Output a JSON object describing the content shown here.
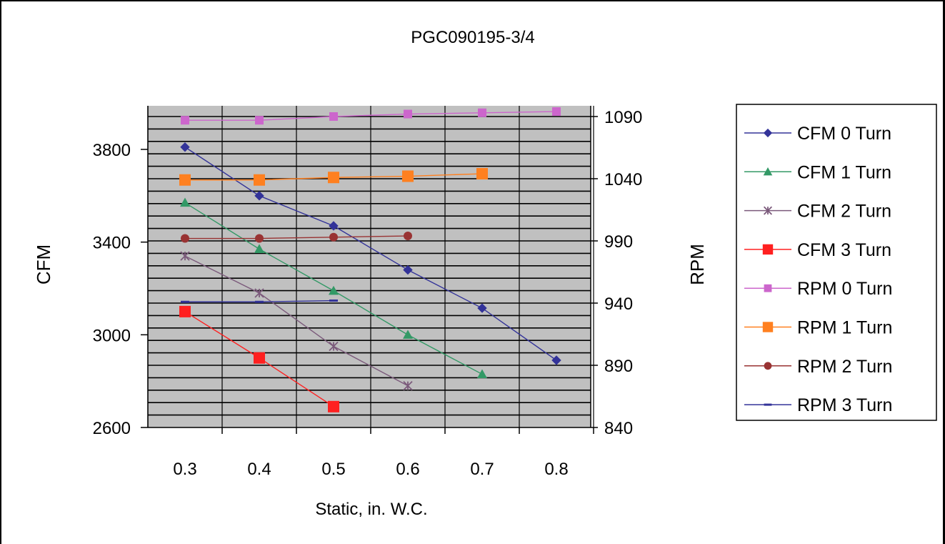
{
  "chart_data": {
    "type": "line",
    "title": "PGC090195-3/4",
    "xlabel": "Static, in. W.C.",
    "ylabel": "CFM",
    "y2label": "RPM",
    "x_ticks": [
      "0.3",
      "0.4",
      "0.5",
      "0.6",
      "0.7",
      "0.8"
    ],
    "y_ticks": [
      "2600",
      "3000",
      "3400",
      "3800"
    ],
    "y2_ticks": [
      "840",
      "890",
      "940",
      "990",
      "1040",
      "1090"
    ],
    "ylim": [
      2600,
      3800
    ],
    "y2lim": [
      840,
      1090
    ],
    "grid": true,
    "legend_position": "right",
    "plot_background": "#c0c0c0",
    "series": [
      {
        "name": "CFM 0 Turn",
        "axis": "left",
        "color": "#333399",
        "marker": "diamond",
        "x": [
          0.3,
          0.4,
          0.5,
          0.6,
          0.7,
          0.8
        ],
        "values": [
          3810,
          3600,
          3470,
          3280,
          3115,
          2890
        ]
      },
      {
        "name": "CFM 1 Turn",
        "axis": "left",
        "color": "#339966",
        "marker": "triangle",
        "x": [
          0.3,
          0.4,
          0.5,
          0.6,
          0.7
        ],
        "values": [
          3570,
          3370,
          3190,
          3000,
          2830
        ]
      },
      {
        "name": "CFM 2 Turn",
        "axis": "left",
        "color": "#7b5a7b",
        "marker": "star",
        "x": [
          0.3,
          0.4,
          0.5,
          0.6
        ],
        "values": [
          3340,
          3180,
          2950,
          2780
        ]
      },
      {
        "name": "CFM 3 Turn",
        "axis": "left",
        "color": "#ff2020",
        "marker": "square",
        "x": [
          0.3,
          0.4,
          0.5
        ],
        "values": [
          3100,
          2900,
          2690
        ]
      },
      {
        "name": "RPM 0 Turn",
        "axis": "right",
        "color": "#cc66cc",
        "marker": "square-small",
        "x": [
          0.3,
          0.4,
          0.5,
          0.6,
          0.7,
          0.8
        ],
        "values": [
          1087,
          1087,
          1090,
          1092,
          1093,
          1094
        ]
      },
      {
        "name": "RPM 1 Turn",
        "axis": "right",
        "color": "#ff8020",
        "marker": "square",
        "x": [
          0.3,
          0.4,
          0.5,
          0.6,
          0.7
        ],
        "values": [
          1039,
          1039,
          1041,
          1042,
          1044
        ]
      },
      {
        "name": "RPM 2 Turn",
        "axis": "right",
        "color": "#993333",
        "marker": "circle",
        "x": [
          0.3,
          0.4,
          0.5,
          0.6
        ],
        "values": [
          992,
          992,
          993,
          994
        ]
      },
      {
        "name": "RPM 3 Turn",
        "axis": "right",
        "color": "#333399",
        "marker": "dash",
        "x": [
          0.3,
          0.4,
          0.5
        ],
        "values": [
          941,
          941,
          942
        ]
      }
    ]
  }
}
